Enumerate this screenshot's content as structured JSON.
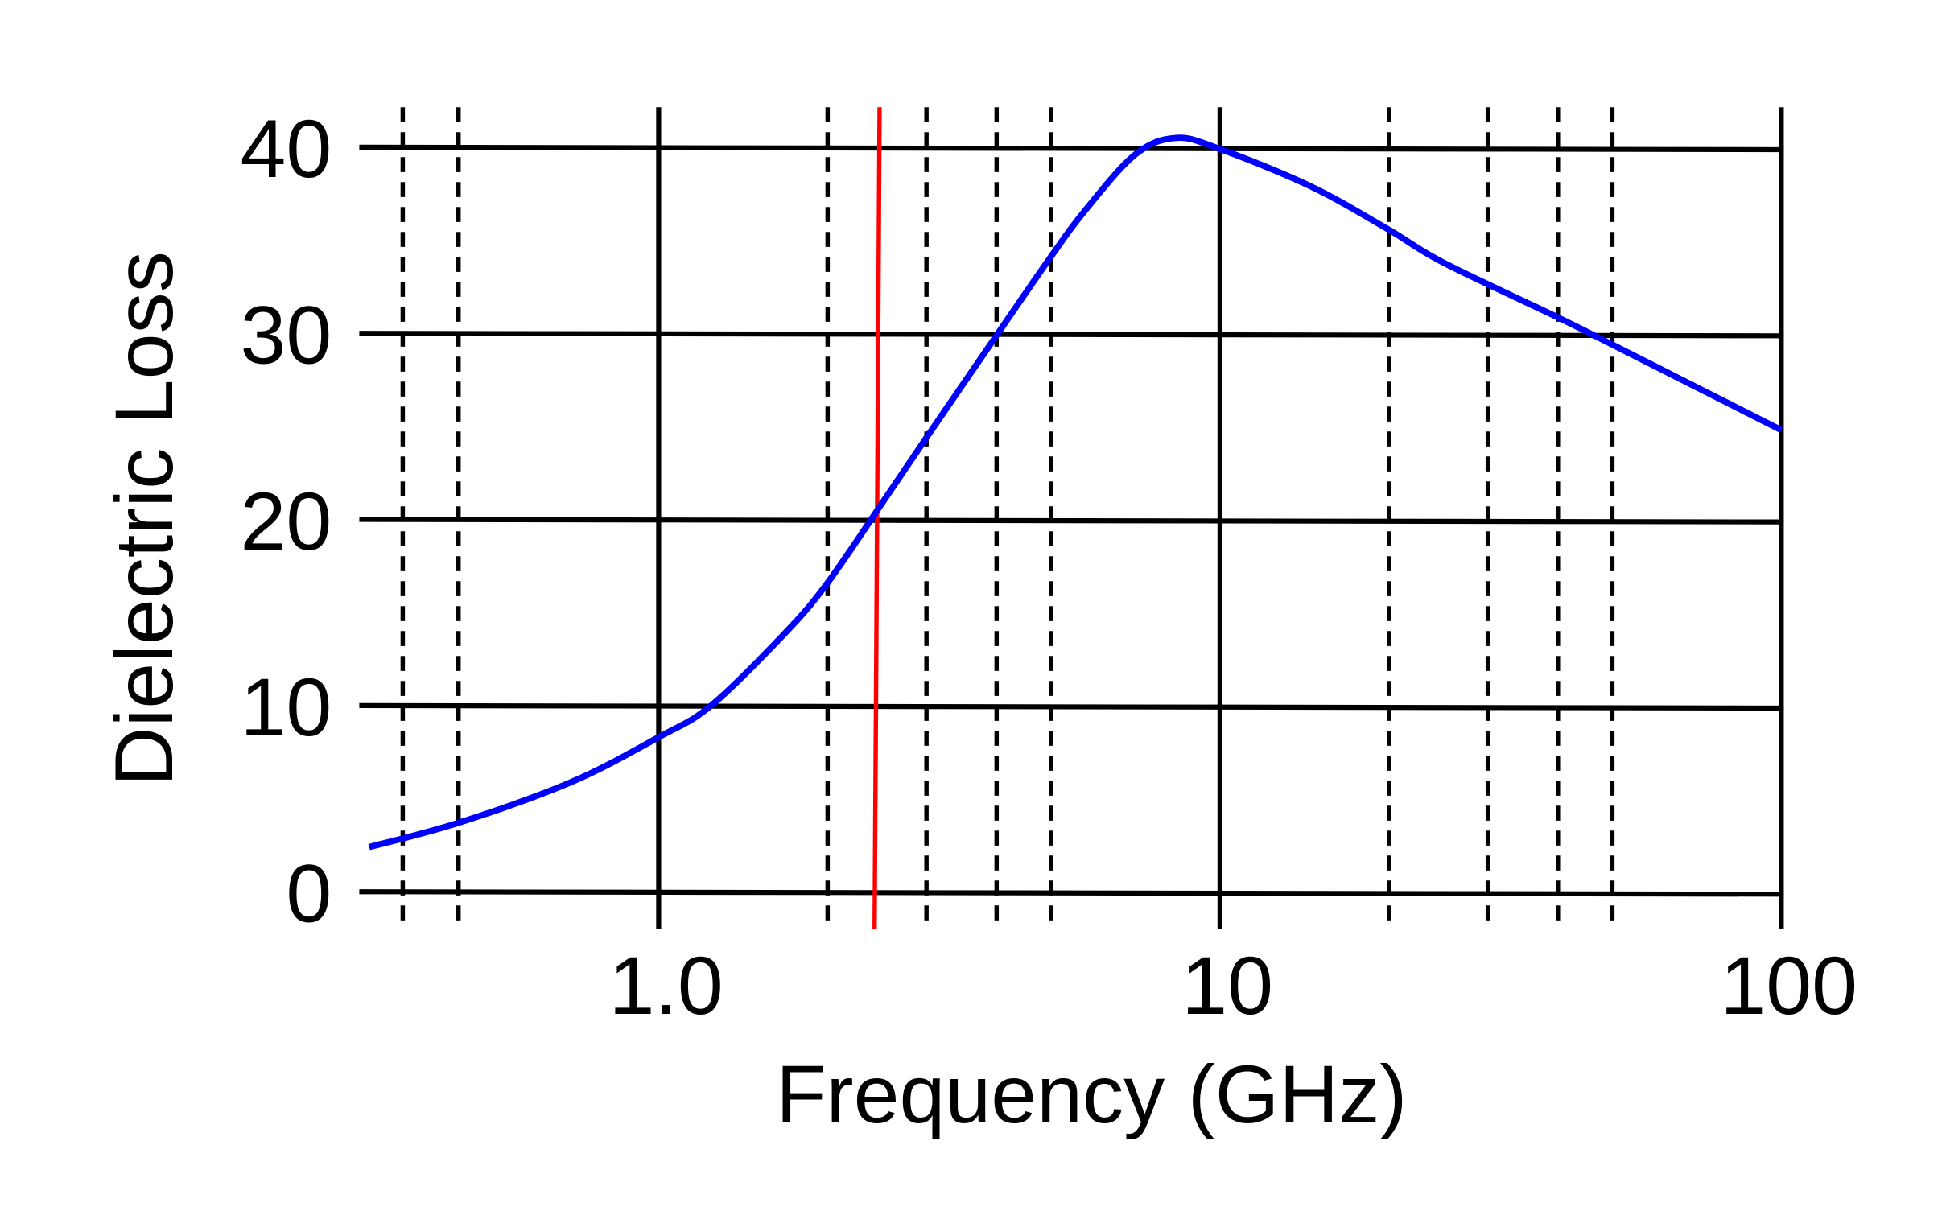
{
  "chart_data": {
    "type": "line",
    "title": "",
    "xlabel": "Frequency (GHz)",
    "ylabel": "Dielectric Loss",
    "xscale": "log",
    "xlim": [
      0.29,
      100
    ],
    "ylim": [
      0,
      40
    ],
    "x_tick_labels": [
      {
        "value": 1.0,
        "label": "1.0"
      },
      {
        "value": 10,
        "label": "10"
      },
      {
        "value": 100,
        "label": "100"
      }
    ],
    "y_tick_labels": [
      {
        "value": 0,
        "label": "0"
      },
      {
        "value": 10,
        "label": "10"
      },
      {
        "value": 20,
        "label": "20"
      },
      {
        "value": 30,
        "label": "30"
      },
      {
        "value": 40,
        "label": "40"
      }
    ],
    "grid": true,
    "minor_grid_x": [
      0.35,
      0.44,
      2,
      3,
      4,
      5,
      20,
      30,
      40,
      50
    ],
    "reference_line": {
      "x": 2.45,
      "color": "#ff0000"
    },
    "series": [
      {
        "color": "#0000ff",
        "x": [
          0.305,
          0.44,
          0.7,
          1.0,
          1.24,
          1.68,
          2.0,
          2.53,
          3.0,
          3.96,
          4.94,
          5.75,
          7.06,
          8.35,
          10,
          14.5,
          19.9,
          25,
          39.7,
          49.2,
          100
        ],
        "y": [
          2.4,
          3.7,
          5.9,
          8.3,
          10.0,
          13.9,
          16.6,
          21.1,
          24.4,
          29.7,
          33.9,
          36.6,
          39.6,
          40.5,
          39.9,
          37.9,
          35.6,
          33.8,
          30.9,
          29.5,
          24.8
        ]
      }
    ]
  }
}
